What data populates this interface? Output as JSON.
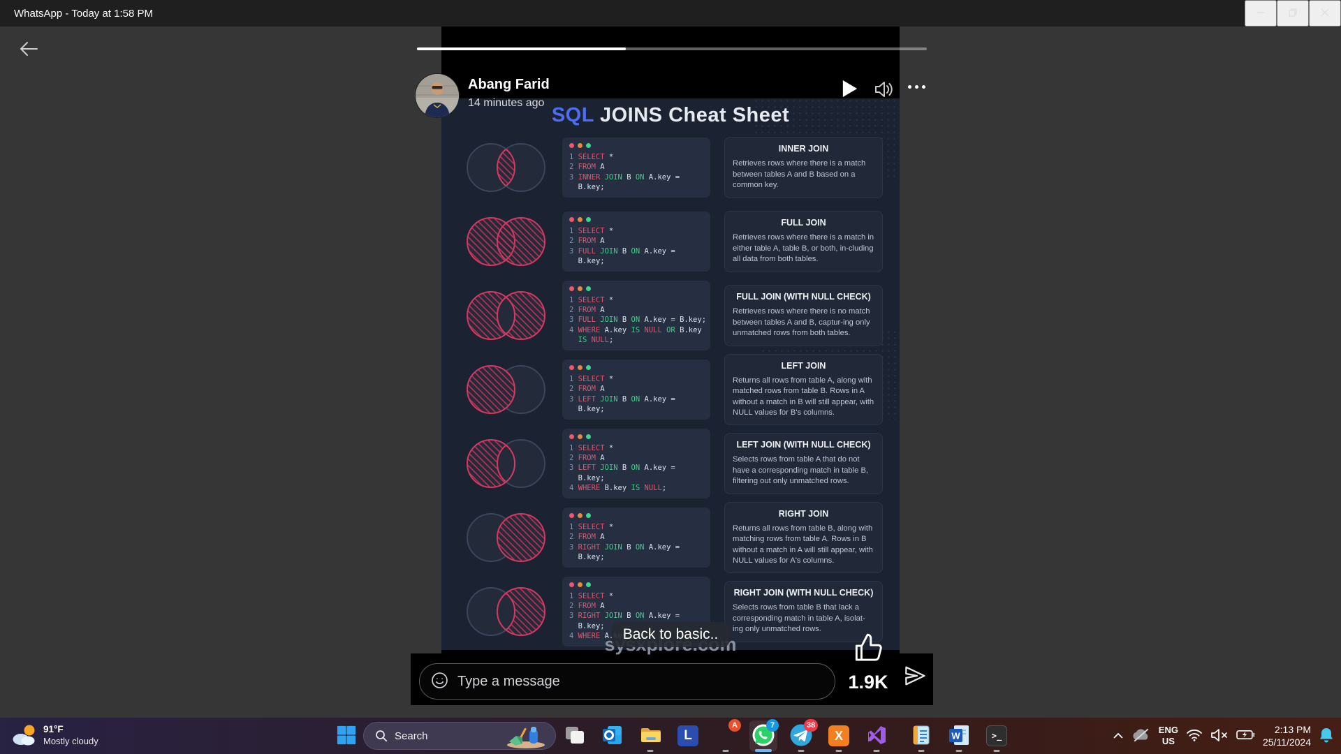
{
  "window": {
    "title": "WhatsApp - Today at 1:58 PM"
  },
  "status": {
    "author": "Abang Farid",
    "time_ago": "14 minutes ago",
    "progress_percent": 41,
    "caption": "Back to basic..",
    "watermark": "sysxplore.com",
    "reactions_count": "1.9K",
    "reply_placeholder": "Type a message"
  },
  "poster": {
    "title_accent": "SQL",
    "title_rest": " JOINS Cheat Sheet",
    "colors": {
      "accent_blue": "#4e6df2",
      "highlight_pink": "#d63862",
      "keyword_red": "#e0566d",
      "keyword_green": "#43d18a",
      "background_navy": "#1b2232"
    },
    "rows": [
      {
        "join": "INNER JOIN",
        "venn": "inner",
        "description": "Retrieves rows where there is a match between tables A and B based on a common key.",
        "code": [
          [
            [
              "ln",
              "1 "
            ],
            [
              "kw",
              "SELECT"
            ],
            [
              "pl",
              " *"
            ]
          ],
          [
            [
              "ln",
              "2 "
            ],
            [
              "kw",
              "FROM"
            ],
            [
              "pl",
              " A"
            ]
          ],
          [
            [
              "ln",
              "3 "
            ],
            [
              "kw",
              "INNER"
            ],
            [
              "pl",
              " "
            ],
            [
              "fn",
              "JOIN"
            ],
            [
              "pl",
              " B "
            ],
            [
              "fn",
              "ON"
            ],
            [
              "pl",
              " A.key ="
            ]
          ],
          [
            [
              "ln",
              "  "
            ],
            [
              "pl",
              "B.key;"
            ]
          ]
        ]
      },
      {
        "join": "FULL JOIN",
        "venn": "full",
        "description": "Retrieves rows where there is a match in either table A, table B, or both, in-cluding all data from both tables.",
        "code": [
          [
            [
              "ln",
              "1 "
            ],
            [
              "kw",
              "SELECT"
            ],
            [
              "pl",
              " *"
            ]
          ],
          [
            [
              "ln",
              "2 "
            ],
            [
              "kw",
              "FROM"
            ],
            [
              "pl",
              " A"
            ]
          ],
          [
            [
              "ln",
              "3 "
            ],
            [
              "kw",
              "FULL"
            ],
            [
              "pl",
              " "
            ],
            [
              "fn",
              "JOIN"
            ],
            [
              "pl",
              " B "
            ],
            [
              "fn",
              "ON"
            ],
            [
              "pl",
              " A.key ="
            ]
          ],
          [
            [
              "ln",
              "  "
            ],
            [
              "pl",
              "B.key;"
            ]
          ]
        ]
      },
      {
        "join": "FULL JOIN (WITH NULL CHECK)",
        "venn": "full_null",
        "description": "Retrieves rows where there is no match between tables A and B, captur-ing only unmatched rows from both tables.",
        "code": [
          [
            [
              "ln",
              "1 "
            ],
            [
              "kw",
              "SELECT"
            ],
            [
              "pl",
              " *"
            ]
          ],
          [
            [
              "ln",
              "2 "
            ],
            [
              "kw",
              "FROM"
            ],
            [
              "pl",
              " A"
            ]
          ],
          [
            [
              "ln",
              "3 "
            ],
            [
              "kw",
              "FULL"
            ],
            [
              "pl",
              " "
            ],
            [
              "fn",
              "JOIN"
            ],
            [
              "pl",
              " B "
            ],
            [
              "fn",
              "ON"
            ],
            [
              "pl",
              " A.key = B.key;"
            ]
          ],
          [
            [
              "ln",
              "4 "
            ],
            [
              "kw",
              "WHERE"
            ],
            [
              "pl",
              " A.key "
            ],
            [
              "fn",
              "IS"
            ],
            [
              "pl",
              " "
            ],
            [
              "kw",
              "NULL"
            ],
            [
              "pl",
              " "
            ],
            [
              "fn",
              "OR"
            ],
            [
              "pl",
              " B.key"
            ]
          ],
          [
            [
              "ln",
              "  "
            ],
            [
              "fn",
              "IS"
            ],
            [
              "pl",
              " "
            ],
            [
              "kw",
              "NULL"
            ],
            [
              "pl",
              ";"
            ]
          ]
        ]
      },
      {
        "join": "LEFT JOIN",
        "venn": "left",
        "description": "Returns all rows from table A, along with matched rows from table B. Rows in A without a match in B will still appear, with NULL values for B's columns.",
        "code": [
          [
            [
              "ln",
              "1 "
            ],
            [
              "kw",
              "SELECT"
            ],
            [
              "pl",
              " *"
            ]
          ],
          [
            [
              "ln",
              "2 "
            ],
            [
              "kw",
              "FROM"
            ],
            [
              "pl",
              " A"
            ]
          ],
          [
            [
              "ln",
              "3 "
            ],
            [
              "kw",
              "LEFT"
            ],
            [
              "pl",
              " "
            ],
            [
              "fn",
              "JOIN"
            ],
            [
              "pl",
              " B "
            ],
            [
              "fn",
              "ON"
            ],
            [
              "pl",
              " A.key ="
            ]
          ],
          [
            [
              "ln",
              "  "
            ],
            [
              "pl",
              "B.key;"
            ]
          ]
        ]
      },
      {
        "join": "LEFT JOIN (WITH NULL CHECK)",
        "venn": "left_null",
        "description": "Selects rows from table A that do not have a corresponding match in table B, filtering out only unmatched rows.",
        "code": [
          [
            [
              "ln",
              "1 "
            ],
            [
              "kw",
              "SELECT"
            ],
            [
              "pl",
              " *"
            ]
          ],
          [
            [
              "ln",
              "2 "
            ],
            [
              "kw",
              "FROM"
            ],
            [
              "pl",
              " A"
            ]
          ],
          [
            [
              "ln",
              "3 "
            ],
            [
              "kw",
              "LEFT"
            ],
            [
              "pl",
              " "
            ],
            [
              "fn",
              "JOIN"
            ],
            [
              "pl",
              " B "
            ],
            [
              "fn",
              "ON"
            ],
            [
              "pl",
              " A.key ="
            ]
          ],
          [
            [
              "ln",
              "  "
            ],
            [
              "pl",
              "B.key;"
            ]
          ],
          [
            [
              "ln",
              "4 "
            ],
            [
              "kw",
              "WHERE"
            ],
            [
              "pl",
              " B.key "
            ],
            [
              "fn",
              "IS"
            ],
            [
              "pl",
              " "
            ],
            [
              "kw",
              "NULL"
            ],
            [
              "pl",
              ";"
            ]
          ]
        ]
      },
      {
        "join": "RIGHT JOIN",
        "venn": "right",
        "description": "Returns all rows from table B, along with matching rows from table A. Rows in B without a match in A will still appear, with NULL values for A's columns.",
        "code": [
          [
            [
              "ln",
              "1 "
            ],
            [
              "kw",
              "SELECT"
            ],
            [
              "pl",
              " *"
            ]
          ],
          [
            [
              "ln",
              "2 "
            ],
            [
              "kw",
              "FROM"
            ],
            [
              "pl",
              " A"
            ]
          ],
          [
            [
              "ln",
              "3 "
            ],
            [
              "kw",
              "RIGHT"
            ],
            [
              "pl",
              " "
            ],
            [
              "fn",
              "JOIN"
            ],
            [
              "pl",
              " B "
            ],
            [
              "fn",
              "ON"
            ],
            [
              "pl",
              " A.key ="
            ]
          ],
          [
            [
              "ln",
              "  "
            ],
            [
              "pl",
              "B.key;"
            ]
          ]
        ]
      },
      {
        "join": "RIGHT JOIN (WITH NULL CHECK)",
        "venn": "right_null",
        "description": "Selects rows from table B that lack a corresponding match in table A, isolat-ing only unmatched rows.",
        "code": [
          [
            [
              "ln",
              "1 "
            ],
            [
              "kw",
              "SELECT"
            ],
            [
              "pl",
              " *"
            ]
          ],
          [
            [
              "ln",
              "2 "
            ],
            [
              "kw",
              "FROM"
            ],
            [
              "pl",
              " A"
            ]
          ],
          [
            [
              "ln",
              "3 "
            ],
            [
              "kw",
              "RIGHT"
            ],
            [
              "pl",
              " "
            ],
            [
              "fn",
              "JOIN"
            ],
            [
              "pl",
              " B "
            ],
            [
              "fn",
              "ON"
            ],
            [
              "pl",
              " A.key ="
            ]
          ],
          [
            [
              "ln",
              "  "
            ],
            [
              "pl",
              "B.key;"
            ]
          ],
          [
            [
              "ln",
              "4 "
            ],
            [
              "kw",
              "WHERE"
            ],
            [
              "pl",
              " A.key "
            ],
            [
              "fn",
              "IS"
            ],
            [
              "pl",
              " "
            ],
            [
              "kw",
              "NULL"
            ],
            [
              "pl",
              ";"
            ]
          ]
        ]
      }
    ]
  },
  "taskbar": {
    "weather": {
      "temp": "91°F",
      "condition": "Mostly cloudy"
    },
    "search_label": "Search",
    "apps": [
      {
        "name": "task-view"
      },
      {
        "name": "outlook"
      },
      {
        "name": "file-explorer",
        "running": true
      },
      {
        "name": "l-app"
      },
      {
        "name": "chrome",
        "badge": "A",
        "badge_color": "#e8502e",
        "running": true
      },
      {
        "name": "whatsapp",
        "badge": "7",
        "badge_color": "#1798e2",
        "active": true
      },
      {
        "name": "telegram",
        "badge": "38",
        "badge_color": "#ef3b47",
        "running": true
      },
      {
        "name": "xampp",
        "running": true
      },
      {
        "name": "visual-studio",
        "running": true
      },
      {
        "name": "notepad",
        "running": true,
        "gap_before": true
      },
      {
        "name": "word",
        "running": true
      },
      {
        "name": "terminal",
        "running": true
      }
    ],
    "tray": {
      "lang_line1": "ENG",
      "lang_line2": "US",
      "time": "2:13 PM",
      "date": "25/11/2024"
    }
  }
}
